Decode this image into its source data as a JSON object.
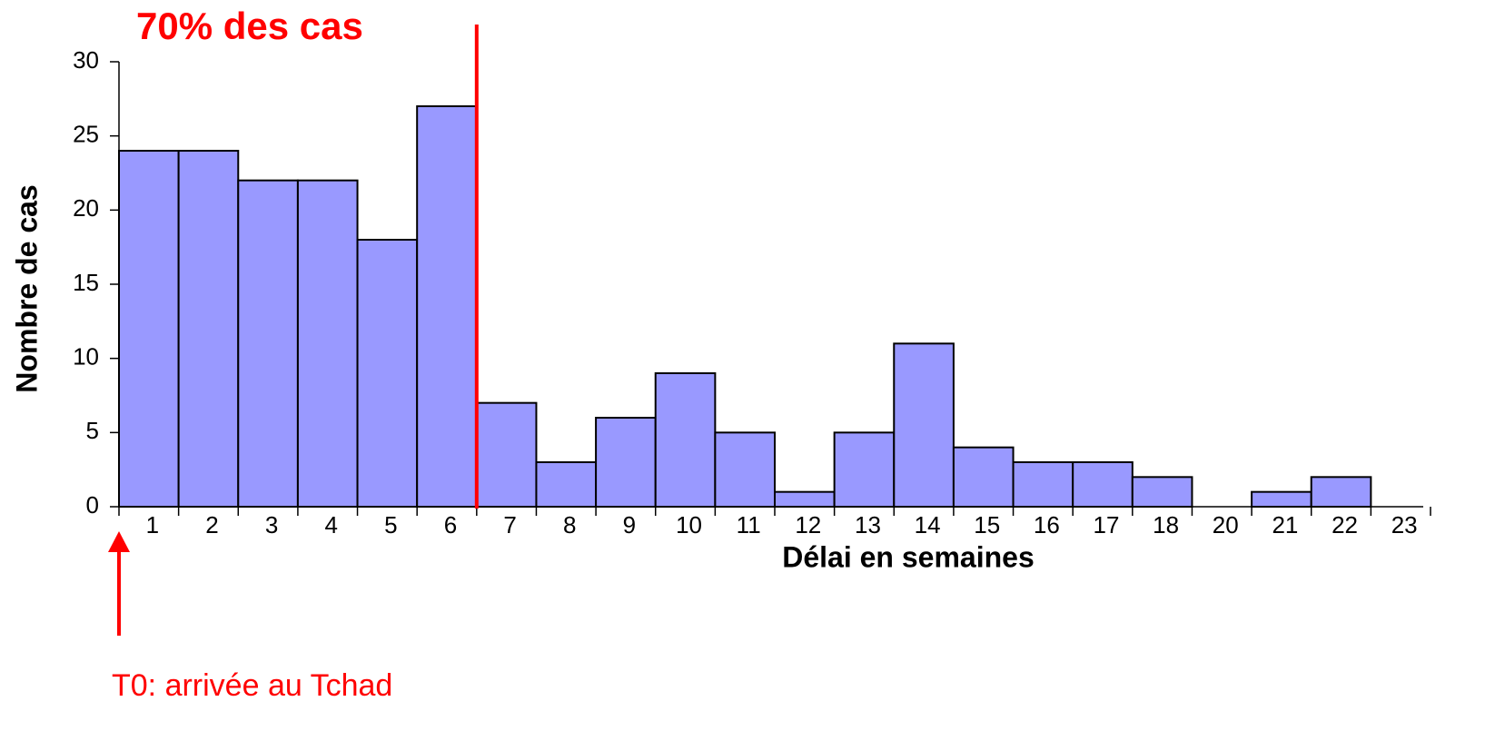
{
  "chart_data": {
    "type": "bar",
    "categories": [
      "1",
      "2",
      "3",
      "4",
      "5",
      "6",
      "7",
      "8",
      "9",
      "10",
      "11",
      "12",
      "13",
      "14",
      "15",
      "16",
      "17",
      "18",
      "20",
      "21",
      "22",
      "23"
    ],
    "values": [
      24,
      24,
      22,
      22,
      18,
      27,
      7,
      3,
      6,
      9,
      5,
      1,
      5,
      11,
      4,
      3,
      3,
      2,
      0,
      1,
      2,
      0
    ],
    "color": "#9999ff",
    "ylim": [
      0,
      30
    ],
    "yticks": [
      0,
      5,
      10,
      15,
      20,
      25,
      30
    ],
    "grid": false,
    "xlabel": "Délai en semaines",
    "ylabel": "Nombre de cas",
    "annotations": [
      "70% des cas",
      "T0: arrivée au Tchad"
    ]
  }
}
